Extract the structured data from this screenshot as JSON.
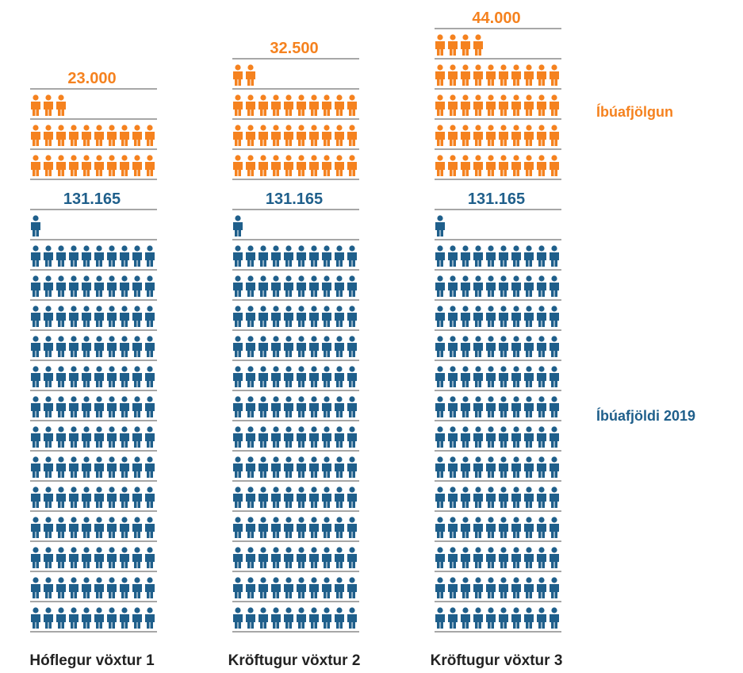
{
  "chart_data": {
    "type": "pictogram",
    "categories": [
      "Hóflegur vöxtur 1",
      "Kröftugur vöxtur 2",
      "Kröftugur vöxtur 3"
    ],
    "series": [
      {
        "name": "Íbúafjöldi 2019",
        "color": "#1f5f8b",
        "values": [
          131165,
          131165,
          131165
        ],
        "value_labels": [
          "131.165",
          "131.165",
          "131.165"
        ]
      },
      {
        "name": "Íbúafjölgun",
        "color": "#f5821f",
        "values": [
          23000,
          32500,
          44000
        ],
        "value_labels": [
          "23.000",
          "32.500",
          "44.000"
        ]
      }
    ]
  }
}
